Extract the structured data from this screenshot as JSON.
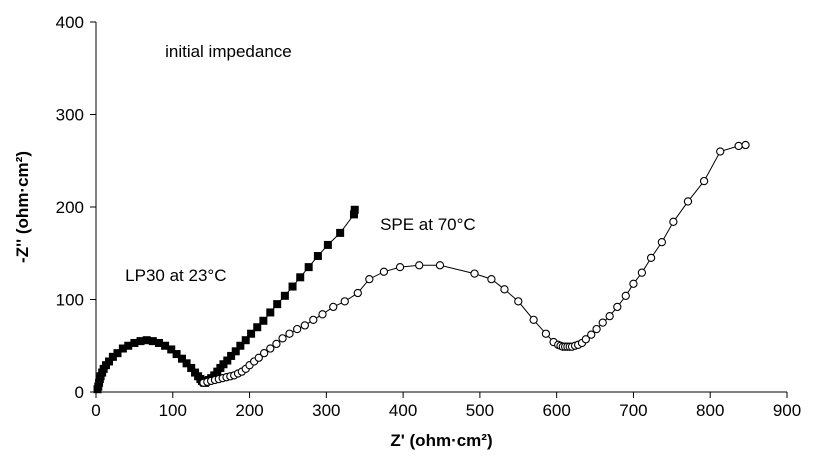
{
  "chart_data": {
    "type": "scatter",
    "title": "",
    "xlabel": "Z' (ohm·cm²)",
    "ylabel": "-Z'' (ohm·cm²)",
    "xlim": [
      0,
      900
    ],
    "ylim": [
      0,
      400
    ],
    "xticks": [
      0,
      100,
      200,
      300,
      400,
      500,
      600,
      700,
      800,
      900
    ],
    "yticks": [
      0,
      100,
      200,
      300,
      400
    ],
    "grid": false,
    "legend": "none",
    "annotations": [
      {
        "text": "initial impedance",
        "x": 90,
        "y": 362
      },
      {
        "text": "SPE at 70°C",
        "x": 370,
        "y": 175
      },
      {
        "text": "LP30 at 23°C",
        "x": 38,
        "y": 120
      }
    ],
    "series": [
      {
        "marker": "filled-square",
        "color": "#000000",
        "x": [
          2,
          3,
          4,
          5,
          6,
          8,
          10,
          13,
          17,
          22,
          28,
          35,
          42,
          50,
          58,
          66,
          74,
          82,
          90,
          98,
          105,
          112,
          118,
          124,
          129,
          133,
          136,
          138,
          140,
          141,
          142,
          143,
          145,
          147,
          150,
          154,
          158,
          162,
          166,
          171,
          176,
          182,
          188,
          195,
          202,
          210,
          218,
          227,
          236,
          246,
          256,
          266,
          277,
          289,
          302,
          318,
          336,
          337
        ],
        "y": [
          3,
          6,
          10,
          14,
          17,
          21,
          25,
          29,
          33,
          38,
          42,
          47,
          50,
          53,
          55,
          56,
          55,
          53,
          50,
          46,
          41,
          36,
          31,
          26,
          21,
          17,
          14,
          12,
          11,
          10,
          10,
          11,
          12,
          13,
          15,
          18,
          22,
          26,
          30,
          34,
          39,
          44,
          50,
          56,
          63,
          70,
          77,
          86,
          95,
          104,
          114,
          124,
          135,
          147,
          159,
          172,
          192,
          197
        ]
      },
      {
        "marker": "open-circle",
        "color": "#000000",
        "x": [
          140,
          145,
          150,
          155,
          160,
          165,
          170,
          175,
          180,
          185,
          190,
          195,
          200,
          206,
          212,
          219,
          227,
          235,
          243,
          252,
          262,
          272,
          283,
          295,
          309,
          324,
          341,
          356,
          375,
          396,
          421,
          448,
          493,
          515,
          532,
          550,
          570,
          586,
          596,
          602,
          605,
          608,
          611,
          614,
          617,
          620,
          624,
          628,
          633,
          638,
          645,
          652,
          660,
          669,
          679,
          690,
          700,
          711,
          723,
          737,
          752,
          771,
          792,
          813,
          837,
          846
        ],
        "y": [
          10,
          11,
          12,
          13,
          14,
          15,
          16,
          17,
          18,
          20,
          22,
          25,
          29,
          33,
          37,
          42,
          47,
          52,
          58,
          63,
          68,
          72,
          78,
          84,
          92,
          98,
          107,
          122,
          130,
          135,
          137,
          137,
          128,
          122,
          111,
          98,
          78,
          63,
          54,
          51,
          50,
          49,
          49,
          49,
          49,
          49,
          50,
          51,
          53,
          57,
          62,
          68,
          75,
          82,
          92,
          104,
          117,
          129,
          145,
          162,
          184,
          206,
          228,
          260,
          266,
          267
        ]
      }
    ]
  }
}
